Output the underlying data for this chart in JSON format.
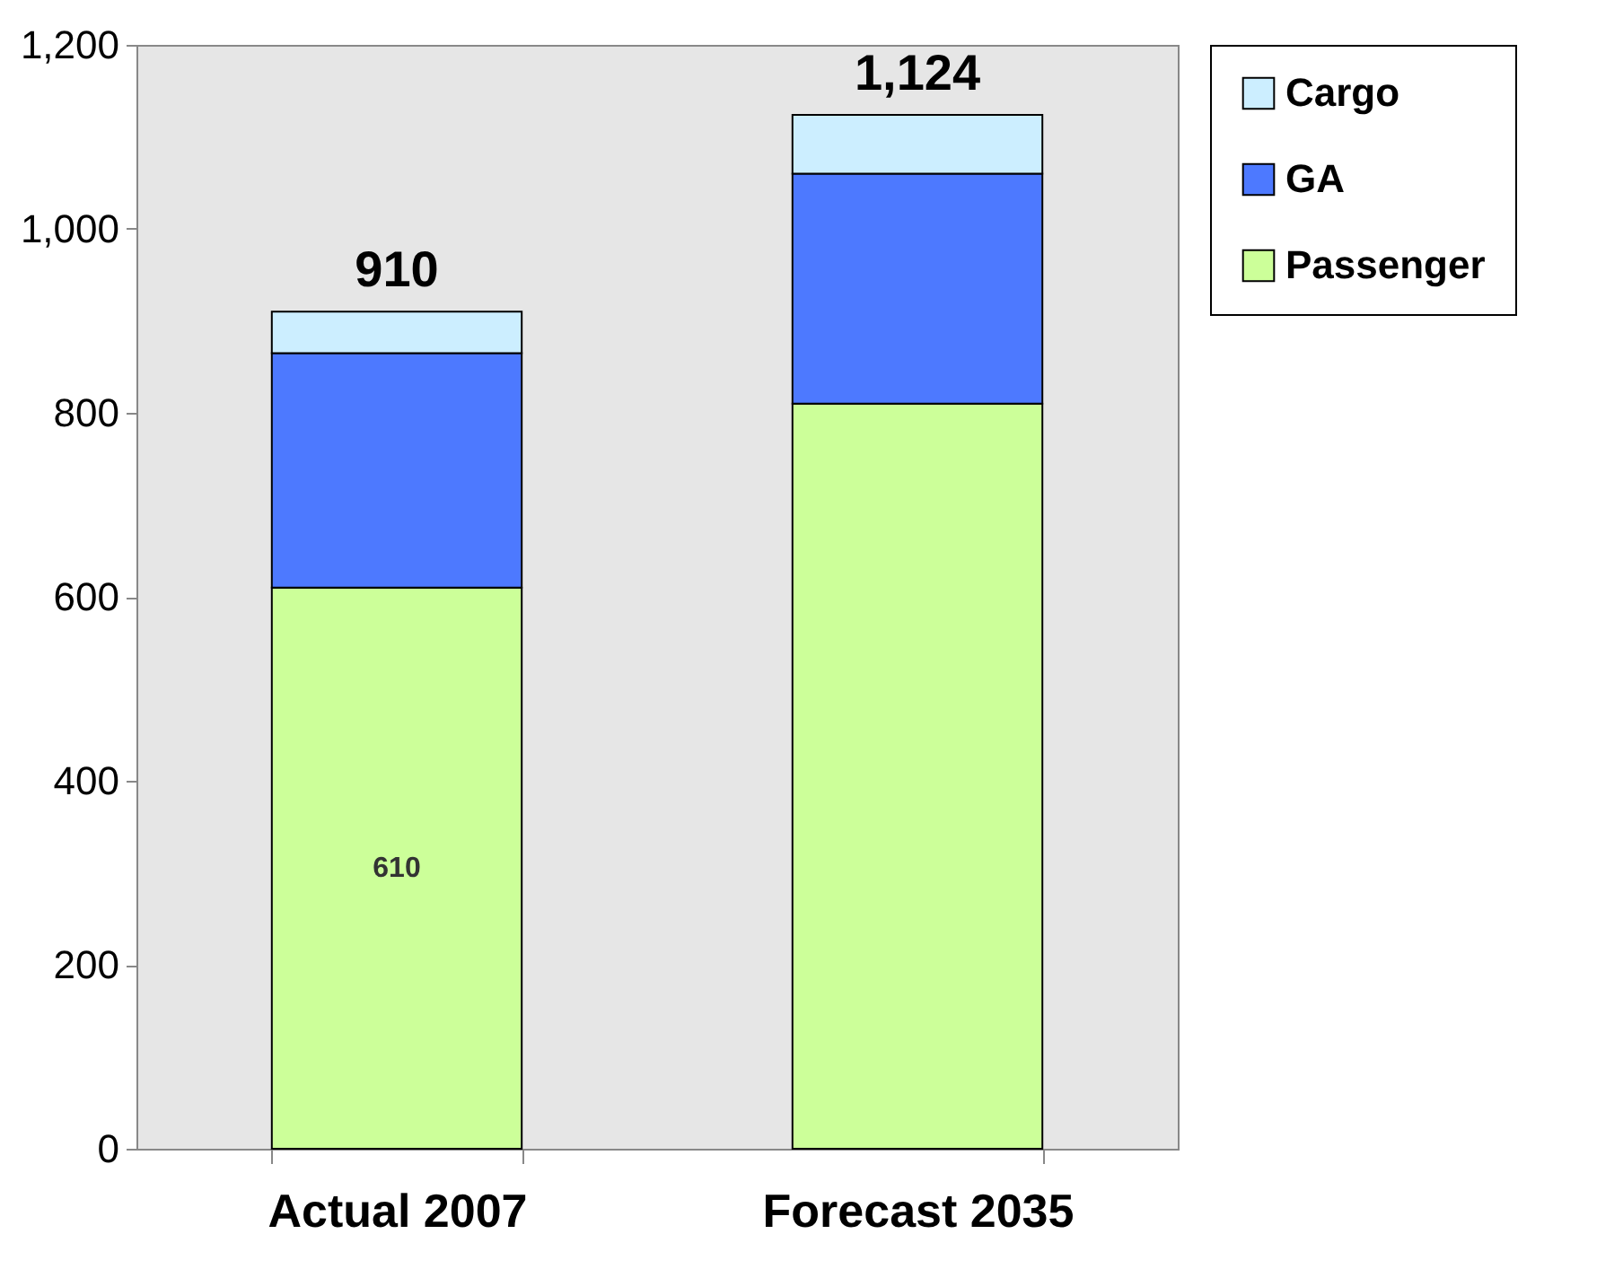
{
  "chart_data": {
    "type": "bar",
    "stacked": true,
    "categories": [
      "Actual 2007",
      "Forecast 2035"
    ],
    "series": [
      {
        "name": "Passenger",
        "color": "#ccff99",
        "values": [
          610,
          810
        ],
        "value_labels": [
          "610",
          null
        ]
      },
      {
        "name": "GA",
        "color": "#4d79ff",
        "values": [
          255,
          250
        ]
      },
      {
        "name": "Cargo",
        "color": "#cceeff",
        "values": [
          45,
          64
        ]
      }
    ],
    "totals": [
      "910",
      "1,124"
    ],
    "ylim": [
      0,
      1200
    ],
    "yticks": [
      0,
      200,
      400,
      600,
      800,
      {
        "value": 1000,
        "label": "1,000"
      },
      {
        "value": 1200,
        "label": "1,200"
      }
    ],
    "grid": false,
    "legend": "right"
  }
}
